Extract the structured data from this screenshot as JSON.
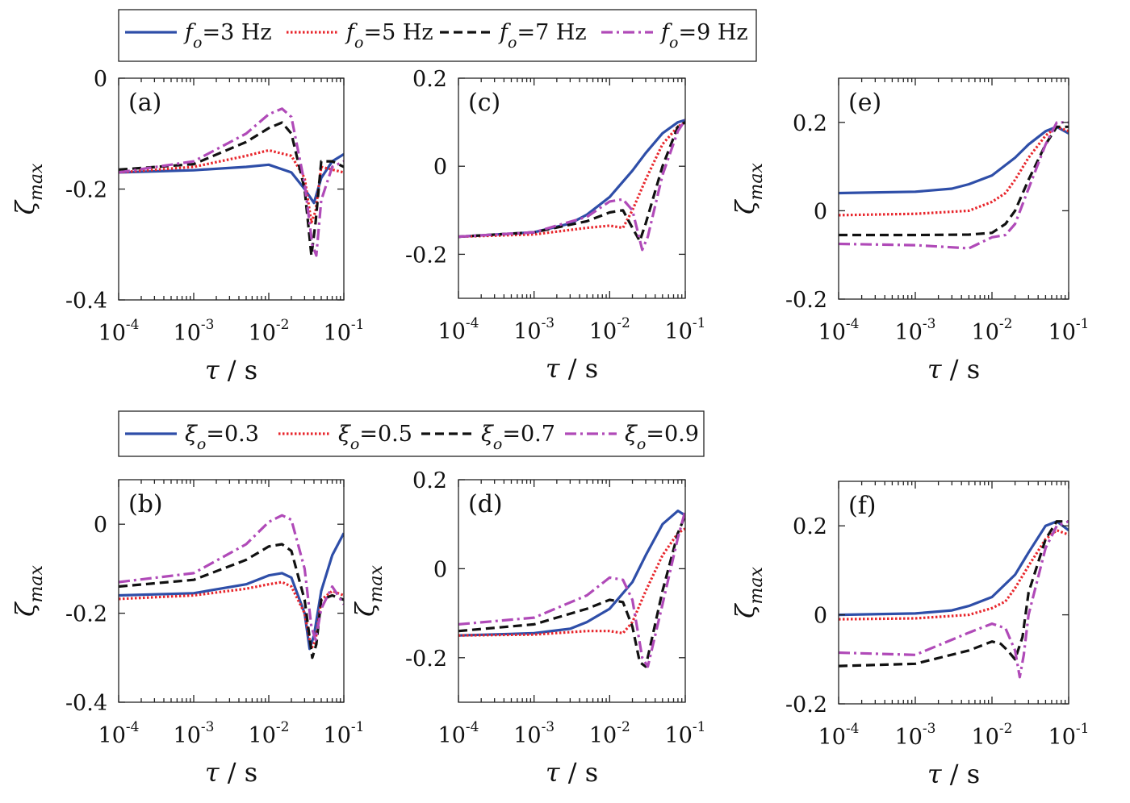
{
  "colors": {
    "c1": "#2e4ea8",
    "c2": "#e8262c",
    "c3": "#111111",
    "c4": "#b04ab8"
  },
  "legends": [
    {
      "id": "top",
      "entries": [
        {
          "label": "f",
          "sub": "o",
          "rest": "=3 Hz",
          "style": "s1"
        },
        {
          "label": "f",
          "sub": "o",
          "rest": "=5 Hz",
          "style": "s2"
        },
        {
          "label": "f",
          "sub": "o",
          "rest": "=7 Hz",
          "style": "s3"
        },
        {
          "label": "f",
          "sub": "o",
          "rest": "=9 Hz",
          "style": "s4"
        }
      ]
    },
    {
      "id": "bottom",
      "entries": [
        {
          "label": "ξ",
          "sub": "o",
          "rest": "=0.3",
          "style": "s1"
        },
        {
          "label": "ξ",
          "sub": "o",
          "rest": "=0.5",
          "style": "s2"
        },
        {
          "label": "ξ",
          "sub": "o",
          "rest": "=0.7",
          "style": "s3"
        },
        {
          "label": "ξ",
          "sub": "o",
          "rest": "=0.9",
          "style": "s4"
        }
      ]
    }
  ],
  "axes_text": {
    "xlabel_tau": "τ",
    "xlabel_rest": " /  s",
    "ylabel_main": "ζ",
    "ylabel_sub": "max",
    "xtick_base": "10",
    "xtick_exps": [
      "-4",
      "-3",
      "-2",
      "-1"
    ]
  },
  "chart_data": [
    {
      "panel": "(a)",
      "type": "line",
      "xscale": "log",
      "xlim": [
        0.0001,
        0.1
      ],
      "ylim": [
        -0.4,
        0
      ],
      "yticks": [
        -0.4,
        -0.2,
        0
      ],
      "ytick_labels": [
        "-0.4",
        "-0.2",
        "0"
      ],
      "ylabel_shown": true,
      "series": [
        {
          "style": "s1",
          "x": [
            0.0001,
            0.001,
            0.005,
            0.01,
            0.02,
            0.03,
            0.04,
            0.05,
            0.07,
            0.1
          ],
          "y": [
            -0.17,
            -0.166,
            -0.16,
            -0.156,
            -0.17,
            -0.2,
            -0.225,
            -0.18,
            -0.15,
            -0.137
          ]
        },
        {
          "style": "s2",
          "x": [
            0.0001,
            0.001,
            0.005,
            0.01,
            0.02,
            0.03,
            0.037,
            0.042,
            0.05,
            0.07,
            0.1
          ],
          "y": [
            -0.17,
            -0.16,
            -0.14,
            -0.13,
            -0.14,
            -0.18,
            -0.26,
            -0.24,
            -0.16,
            -0.165,
            -0.17
          ]
        },
        {
          "style": "s3",
          "x": [
            0.0001,
            0.001,
            0.005,
            0.01,
            0.015,
            0.02,
            0.03,
            0.037,
            0.042,
            0.05,
            0.07,
            0.1
          ],
          "y": [
            -0.165,
            -0.155,
            -0.115,
            -0.09,
            -0.08,
            -0.1,
            -0.2,
            -0.32,
            -0.26,
            -0.15,
            -0.15,
            -0.16
          ]
        },
        {
          "style": "s4",
          "x": [
            0.0001,
            0.001,
            0.005,
            0.01,
            0.015,
            0.02,
            0.03,
            0.038,
            0.043,
            0.05,
            0.07,
            0.1
          ],
          "y": [
            -0.17,
            -0.15,
            -0.1,
            -0.065,
            -0.055,
            -0.07,
            -0.19,
            -0.3,
            -0.32,
            -0.22,
            -0.16,
            -0.15
          ]
        }
      ]
    },
    {
      "panel": "(b)",
      "type": "line",
      "xscale": "log",
      "xlim": [
        0.0001,
        0.1
      ],
      "ylim": [
        -0.4,
        0.1
      ],
      "yticks": [
        -0.4,
        -0.2,
        0
      ],
      "ytick_labels": [
        "-0.4",
        "-0.2",
        "0"
      ],
      "ylabel_shown": true,
      "series": [
        {
          "style": "s1",
          "x": [
            0.0001,
            0.001,
            0.005,
            0.01,
            0.015,
            0.02,
            0.03,
            0.035,
            0.04,
            0.05,
            0.07,
            0.1
          ],
          "y": [
            -0.16,
            -0.155,
            -0.135,
            -0.115,
            -0.11,
            -0.12,
            -0.2,
            -0.28,
            -0.25,
            -0.15,
            -0.07,
            -0.02
          ]
        },
        {
          "style": "s2",
          "x": [
            0.0001,
            0.001,
            0.005,
            0.01,
            0.015,
            0.02,
            0.03,
            0.037,
            0.042,
            0.05,
            0.07,
            0.1
          ],
          "y": [
            -0.168,
            -0.16,
            -0.145,
            -0.135,
            -0.13,
            -0.14,
            -0.2,
            -0.28,
            -0.26,
            -0.17,
            -0.15,
            -0.16
          ]
        },
        {
          "style": "s3",
          "x": [
            0.0001,
            0.001,
            0.005,
            0.01,
            0.015,
            0.02,
            0.03,
            0.038,
            0.043,
            0.05,
            0.07,
            0.1
          ],
          "y": [
            -0.14,
            -0.125,
            -0.08,
            -0.05,
            -0.045,
            -0.06,
            -0.17,
            -0.3,
            -0.27,
            -0.17,
            -0.16,
            -0.17
          ]
        },
        {
          "style": "s4",
          "x": [
            0.0001,
            0.001,
            0.005,
            0.01,
            0.015,
            0.02,
            0.03,
            0.037,
            0.042,
            0.05,
            0.07,
            0.1
          ],
          "y": [
            -0.13,
            -0.11,
            -0.045,
            0.005,
            0.02,
            0.01,
            -0.1,
            -0.23,
            -0.26,
            -0.19,
            -0.14,
            -0.18
          ]
        }
      ]
    },
    {
      "panel": "(c)",
      "type": "line",
      "xscale": "log",
      "xlim": [
        0.0001,
        0.1
      ],
      "ylim": [
        -0.3,
        0.2
      ],
      "yticks": [
        -0.2,
        0,
        0.2
      ],
      "ytick_labels": [
        "-0.2",
        "0",
        "0.2"
      ],
      "ylabel_shown": false,
      "series": [
        {
          "style": "s1",
          "x": [
            0.0001,
            0.001,
            0.003,
            0.005,
            0.01,
            0.02,
            0.03,
            0.05,
            0.08,
            0.1
          ],
          "y": [
            -0.16,
            -0.15,
            -0.13,
            -0.11,
            -0.07,
            -0.01,
            0.03,
            0.075,
            0.1,
            0.105
          ]
        },
        {
          "style": "s2",
          "x": [
            0.0001,
            0.001,
            0.005,
            0.01,
            0.015,
            0.02,
            0.03,
            0.05,
            0.08,
            0.1
          ],
          "y": [
            -0.16,
            -0.155,
            -0.14,
            -0.135,
            -0.14,
            -0.1,
            -0.03,
            0.05,
            0.09,
            0.1
          ]
        },
        {
          "style": "s3",
          "x": [
            0.0001,
            0.001,
            0.005,
            0.01,
            0.015,
            0.02,
            0.025,
            0.03,
            0.05,
            0.08,
            0.1
          ],
          "y": [
            -0.16,
            -0.15,
            -0.125,
            -0.105,
            -0.1,
            -0.14,
            -0.17,
            -0.13,
            0.0,
            0.09,
            0.1
          ]
        },
        {
          "style": "s4",
          "x": [
            0.0001,
            0.001,
            0.005,
            0.01,
            0.015,
            0.02,
            0.027,
            0.032,
            0.05,
            0.08,
            0.1
          ],
          "y": [
            -0.16,
            -0.15,
            -0.115,
            -0.08,
            -0.075,
            -0.1,
            -0.19,
            -0.16,
            -0.02,
            0.08,
            0.105
          ]
        }
      ]
    },
    {
      "panel": "(d)",
      "type": "line",
      "xscale": "log",
      "xlim": [
        0.0001,
        0.1
      ],
      "ylim": [
        -0.3,
        0.2
      ],
      "yticks": [
        -0.2,
        0,
        0.2
      ],
      "ytick_labels": [
        "-0.2",
        "0",
        "0.2"
      ],
      "ylabel_shown": true,
      "series": [
        {
          "style": "s1",
          "x": [
            0.0001,
            0.001,
            0.003,
            0.005,
            0.01,
            0.02,
            0.03,
            0.05,
            0.08,
            0.1
          ],
          "y": [
            -0.15,
            -0.145,
            -0.135,
            -0.12,
            -0.09,
            -0.03,
            0.03,
            0.1,
            0.13,
            0.12
          ]
        },
        {
          "style": "s2",
          "x": [
            0.0001,
            0.001,
            0.005,
            0.01,
            0.015,
            0.02,
            0.03,
            0.05,
            0.08,
            0.1
          ],
          "y": [
            -0.15,
            -0.148,
            -0.14,
            -0.14,
            -0.145,
            -0.12,
            -0.05,
            0.03,
            0.08,
            0.09
          ]
        },
        {
          "style": "s3",
          "x": [
            0.0001,
            0.001,
            0.005,
            0.01,
            0.015,
            0.02,
            0.025,
            0.03,
            0.05,
            0.08,
            0.1
          ],
          "y": [
            -0.14,
            -0.125,
            -0.09,
            -0.07,
            -0.075,
            -0.13,
            -0.21,
            -0.22,
            -0.05,
            0.08,
            0.12
          ]
        },
        {
          "style": "s4",
          "x": [
            0.0001,
            0.001,
            0.005,
            0.01,
            0.015,
            0.02,
            0.027,
            0.032,
            0.05,
            0.08,
            0.1
          ],
          "y": [
            -0.125,
            -0.11,
            -0.06,
            -0.02,
            -0.025,
            -0.07,
            -0.2,
            -0.22,
            -0.08,
            0.07,
            0.13
          ]
        }
      ]
    },
    {
      "panel": "(e)",
      "type": "line",
      "xscale": "log",
      "xlim": [
        0.0001,
        0.1
      ],
      "ylim": [
        -0.2,
        0.3
      ],
      "yticks": [
        -0.2,
        0,
        0.2
      ],
      "ytick_labels": [
        "-0.2",
        "0",
        "0.2"
      ],
      "ylabel_shown": true,
      "series": [
        {
          "style": "s1",
          "x": [
            0.0001,
            0.001,
            0.003,
            0.005,
            0.01,
            0.02,
            0.03,
            0.05,
            0.07,
            0.1
          ],
          "y": [
            0.04,
            0.043,
            0.05,
            0.06,
            0.08,
            0.12,
            0.15,
            0.18,
            0.19,
            0.175
          ]
        },
        {
          "style": "s2",
          "x": [
            0.0001,
            0.001,
            0.005,
            0.01,
            0.015,
            0.02,
            0.03,
            0.05,
            0.07,
            0.1
          ],
          "y": [
            -0.01,
            -0.007,
            0.0,
            0.02,
            0.04,
            0.07,
            0.12,
            0.17,
            0.19,
            0.18
          ]
        },
        {
          "style": "s3",
          "x": [
            0.0001,
            0.001,
            0.005,
            0.01,
            0.015,
            0.02,
            0.03,
            0.05,
            0.07,
            0.1
          ],
          "y": [
            -0.055,
            -0.055,
            -0.054,
            -0.05,
            -0.03,
            0.0,
            0.07,
            0.15,
            0.19,
            0.19
          ]
        },
        {
          "style": "s4",
          "x": [
            0.0001,
            0.001,
            0.005,
            0.01,
            0.015,
            0.02,
            0.03,
            0.05,
            0.07,
            0.1
          ],
          "y": [
            -0.075,
            -0.078,
            -0.085,
            -0.06,
            -0.055,
            -0.03,
            0.05,
            0.15,
            0.2,
            0.2
          ]
        }
      ]
    },
    {
      "panel": "(f)",
      "type": "line",
      "xscale": "log",
      "xlim": [
        0.0001,
        0.1
      ],
      "ylim": [
        -0.2,
        0.3
      ],
      "yticks": [
        -0.2,
        0,
        0.2
      ],
      "ytick_labels": [
        "-0.2",
        "0",
        "0.2"
      ],
      "ylabel_shown": true,
      "series": [
        {
          "style": "s1",
          "x": [
            0.0001,
            0.001,
            0.003,
            0.005,
            0.01,
            0.02,
            0.03,
            0.05,
            0.07,
            0.1
          ],
          "y": [
            0.0,
            0.003,
            0.01,
            0.02,
            0.04,
            0.09,
            0.14,
            0.2,
            0.21,
            0.19
          ]
        },
        {
          "style": "s2",
          "x": [
            0.0001,
            0.001,
            0.005,
            0.01,
            0.015,
            0.02,
            0.03,
            0.05,
            0.07,
            0.1
          ],
          "y": [
            -0.01,
            -0.008,
            0.0,
            0.015,
            0.03,
            0.06,
            0.11,
            0.17,
            0.19,
            0.18
          ]
        },
        {
          "style": "s3",
          "x": [
            0.0001,
            0.001,
            0.005,
            0.01,
            0.013,
            0.016,
            0.02,
            0.025,
            0.03,
            0.05,
            0.07,
            0.1
          ],
          "y": [
            -0.115,
            -0.11,
            -0.08,
            -0.06,
            -0.065,
            -0.08,
            -0.1,
            -0.05,
            0.05,
            0.17,
            0.21,
            0.21
          ]
        },
        {
          "style": "s4",
          "x": [
            0.0001,
            0.001,
            0.005,
            0.01,
            0.015,
            0.02,
            0.023,
            0.026,
            0.03,
            0.05,
            0.07,
            0.1
          ],
          "y": [
            -0.085,
            -0.09,
            -0.04,
            -0.02,
            -0.03,
            -0.08,
            -0.14,
            -0.09,
            0.0,
            0.15,
            0.2,
            0.21
          ]
        }
      ]
    }
  ]
}
